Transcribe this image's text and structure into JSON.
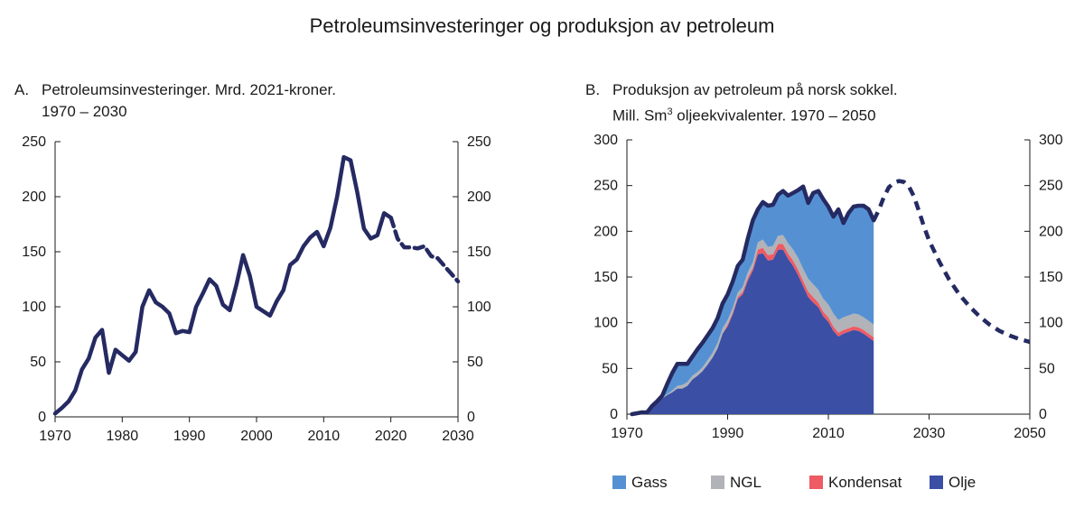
{
  "title": "Petroleumsinvesteringer og produksjon av petroleum",
  "panelA": {
    "letter": "A.",
    "title_line1": "Petroleumsinvesteringer. Mrd. 2021-kroner.",
    "title_line2": "1970 – 2030"
  },
  "panelB": {
    "letter": "B.",
    "title_line1": "Produksjon av petroleum på norsk sokkel.",
    "title_line2_a": "Mill. Sm",
    "title_line2_sup": "3",
    "title_line2_b": " oljeekvivalenter. 1970 – 2050"
  },
  "legend": {
    "gass": "Gass",
    "ngl": "NGL",
    "kondensat": "Kondensat",
    "olje": "Olje"
  },
  "chart_data": [
    {
      "type": "line",
      "title": "Petroleumsinvesteringer. Mrd. 2021-kroner. 1970 – 2030",
      "xlim": [
        1970,
        2030
      ],
      "ylim": [
        0,
        250
      ],
      "xticks": [
        1970,
        1980,
        1990,
        2000,
        2010,
        2020,
        2030
      ],
      "yticks": [
        0,
        50,
        100,
        150,
        200,
        250
      ],
      "color": "#252a62",
      "series": [
        {
          "style": "solid",
          "x": [
            1970,
            1971,
            1972,
            1973,
            1974,
            1975,
            1976,
            1977,
            1978,
            1979,
            1980,
            1981,
            1982,
            1983,
            1984,
            1985,
            1986,
            1987,
            1988,
            1989,
            1990,
            1991,
            1992,
            1993,
            1994,
            1995,
            1996,
            1997,
            1998,
            1999,
            2000,
            2001,
            2002,
            2003,
            2004,
            2005,
            2006,
            2007,
            2008,
            2009,
            2010,
            2011,
            2012,
            2013,
            2014,
            2015,
            2016,
            2017,
            2018,
            2019,
            2020
          ],
          "y": [
            3,
            8,
            14,
            24,
            43,
            53,
            72,
            79,
            40,
            61,
            56,
            51,
            59,
            100,
            115,
            104,
            100,
            94,
            76,
            78,
            77,
            100,
            112,
            125,
            119,
            102,
            97,
            120,
            147,
            128,
            100,
            96,
            92,
            105,
            115,
            138,
            143,
            155,
            163,
            168,
            155,
            172,
            200,
            236,
            233,
            204,
            171,
            162,
            165,
            185,
            181
          ]
        },
        {
          "style": "dashed",
          "x": [
            2020,
            2021,
            2022,
            2023,
            2024,
            2025,
            2026,
            2027,
            2028,
            2029,
            2030
          ],
          "y": [
            181,
            162,
            154,
            154,
            153,
            155,
            146,
            144,
            137,
            130,
            123
          ]
        }
      ]
    },
    {
      "type": "area",
      "title": "Produksjon av petroleum på norsk sokkel. Mill. Sm3 oljeekvivalenter. 1970 – 2050",
      "xlim": [
        1970,
        2050
      ],
      "ylim": [
        0,
        300
      ],
      "xticks": [
        1970,
        1990,
        2010,
        2030,
        2050
      ],
      "yticks": [
        0,
        50,
        100,
        150,
        200,
        250,
        300
      ],
      "x": [
        1971,
        1972,
        1973,
        1974,
        1975,
        1976,
        1977,
        1978,
        1979,
        1980,
        1981,
        1982,
        1983,
        1984,
        1985,
        1986,
        1987,
        1988,
        1989,
        1990,
        1991,
        1992,
        1993,
        1994,
        1995,
        1996,
        1997,
        1998,
        1999,
        2000,
        2001,
        2002,
        2003,
        2004,
        2005,
        2006,
        2007,
        2008,
        2009,
        2010,
        2011,
        2012,
        2013,
        2014,
        2015,
        2016,
        2017,
        2018,
        2019
      ],
      "series": [
        {
          "name": "Olje",
          "color": "#3b4fa5",
          "values": [
            0,
            1,
            2,
            2,
            9,
            14,
            17,
            21,
            24,
            28,
            28,
            31,
            38,
            42,
            47,
            54,
            62,
            72,
            88,
            96,
            109,
            126,
            131,
            146,
            157,
            175,
            176,
            168,
            169,
            180,
            180,
            170,
            162,
            152,
            140,
            128,
            122,
            117,
            107,
            101,
            91,
            85,
            88,
            90,
            92,
            91,
            88,
            84,
            80
          ]
        },
        {
          "name": "Kondensat",
          "color": "#ee5b64",
          "values": [
            0,
            0,
            0,
            0,
            0,
            0,
            0,
            0,
            0,
            0,
            0,
            0,
            0,
            0,
            0,
            0,
            0,
            0,
            0,
            2,
            2,
            2,
            3,
            3,
            3,
            5,
            6,
            6,
            6,
            6,
            6,
            6,
            6,
            6,
            6,
            6,
            6,
            5,
            5,
            5,
            5,
            4,
            4,
            4,
            4,
            4,
            4,
            4,
            4
          ]
        },
        {
          "name": "NGL",
          "color": "#b1b3b8",
          "values": [
            0,
            0,
            0,
            0,
            0,
            0,
            1,
            1,
            2,
            3,
            4,
            4,
            4,
            4,
            4,
            5,
            5,
            6,
            6,
            5,
            5,
            5,
            5,
            6,
            6,
            8,
            9,
            9,
            9,
            9,
            10,
            11,
            12,
            13,
            13,
            14,
            14,
            14,
            14,
            14,
            14,
            14,
            14,
            14,
            14,
            14,
            14,
            14,
            14
          ]
        },
        {
          "name": "Gass",
          "color": "#5591d2",
          "values": [
            0,
            0,
            0,
            0,
            0,
            0,
            2,
            11,
            19,
            24,
            23,
            20,
            21,
            25,
            27,
            27,
            27,
            27,
            27,
            28,
            29,
            29,
            30,
            37,
            46,
            36,
            41,
            45,
            45,
            45,
            48,
            52,
            62,
            74,
            90,
            83,
            100,
            108,
            109,
            107,
            106,
            121,
            103,
            112,
            117,
            119,
            122,
            122,
            114
          ]
        }
      ],
      "total_line": {
        "color": "#252a62",
        "solid": {
          "x": [
            1971,
            1972,
            1973,
            1974,
            1975,
            1976,
            1977,
            1978,
            1979,
            1980,
            1981,
            1982,
            1983,
            1984,
            1985,
            1986,
            1987,
            1988,
            1989,
            1990,
            1991,
            1992,
            1993,
            1994,
            1995,
            1996,
            1997,
            1998,
            1999,
            2000,
            2001,
            2002,
            2003,
            2004,
            2005,
            2006,
            2007,
            2008,
            2009,
            2010,
            2011,
            2012,
            2013,
            2014,
            2015,
            2016,
            2017,
            2018,
            2019
          ],
          "y": [
            0,
            1,
            2,
            2,
            9,
            14,
            20,
            33,
            45,
            55,
            55,
            55,
            63,
            71,
            78,
            86,
            94,
            105,
            121,
            131,
            145,
            162,
            169,
            192,
            212,
            224,
            232,
            228,
            229,
            240,
            244,
            239,
            242,
            245,
            249,
            231,
            242,
            244,
            235,
            227,
            216,
            224,
            209,
            220,
            227,
            228,
            228,
            224,
            212
          ]
        },
        "dashed": {
          "x": [
            2019,
            2020,
            2021,
            2022,
            2023,
            2024,
            2025,
            2026,
            2027,
            2028,
            2029,
            2030,
            2032,
            2034,
            2036,
            2038,
            2040,
            2042,
            2044,
            2046,
            2048,
            2050
          ],
          "y": [
            212,
            223,
            237,
            248,
            253,
            255,
            254,
            249,
            238,
            222,
            205,
            190,
            167,
            147,
            131,
            118,
            107,
            98,
            91,
            86,
            82,
            79
          ]
        }
      }
    }
  ]
}
